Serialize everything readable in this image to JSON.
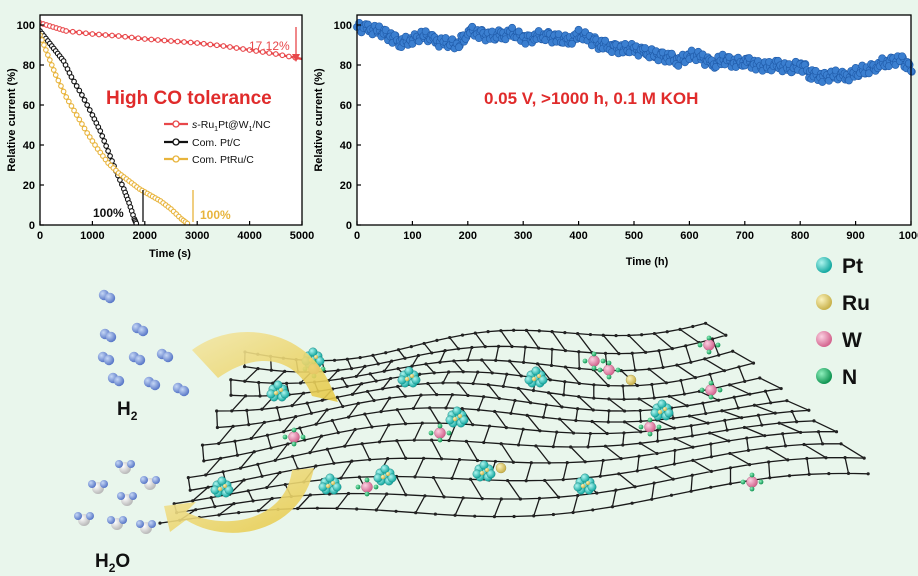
{
  "chart_data": [
    {
      "type": "line",
      "xlabel": "Time (s)",
      "ylabel": "Relative current (%)",
      "xlim": [
        0,
        5000
      ],
      "ylim": [
        0,
        105
      ],
      "xticks": [
        0,
        1000,
        2000,
        3000,
        4000,
        5000
      ],
      "yticks": [
        0,
        20,
        40,
        60,
        80,
        100
      ],
      "annotation_title": "High CO tolerance",
      "legend_position": "right",
      "series": [
        {
          "name_parts": [
            "s",
            "-Ru",
            "1",
            "Pt@W",
            "1",
            "/NC"
          ],
          "color": "#e8474a",
          "x": [
            0,
            250,
            500,
            1000,
            1500,
            2000,
            2500,
            3000,
            3500,
            4000,
            4500,
            5000
          ],
          "y": [
            101,
            99,
            97,
            95.5,
            94.5,
            93,
            92,
            91,
            89.5,
            87.5,
            85.5,
            83
          ]
        },
        {
          "name": "Com. Pt/C",
          "color": "#111111",
          "x": [
            0,
            150,
            300,
            450,
            600,
            800,
            1000,
            1150,
            1300,
            1450,
            1600,
            1700,
            1800,
            1850
          ],
          "y": [
            97,
            92,
            87,
            82,
            74,
            65,
            55,
            47,
            37,
            27,
            18,
            11,
            3,
            0
          ]
        },
        {
          "name": "Com. PtRu/C",
          "color": "#e8b43c",
          "x": [
            0,
            150,
            300,
            500,
            700,
            900,
            1100,
            1300,
            1500,
            1700,
            1900,
            2100,
            2300,
            2500,
            2700,
            2850
          ],
          "y": [
            95,
            85,
            75,
            64,
            55,
            46,
            38,
            31,
            26,
            22,
            18,
            15,
            12,
            8,
            3,
            0
          ]
        }
      ],
      "annotations": [
        {
          "text": "17.12%",
          "color": "#e8474a"
        },
        {
          "text": "100%",
          "color": "#111111"
        },
        {
          "text": "100%",
          "color": "#e8b43c"
        }
      ]
    },
    {
      "type": "scatter",
      "xlabel": "Time (h)",
      "ylabel": "Relative current (%)",
      "xlim": [
        0,
        1000
      ],
      "ylim": [
        0,
        105
      ],
      "xticks": [
        0,
        100,
        200,
        300,
        400,
        500,
        600,
        700,
        800,
        900,
        1000
      ],
      "yticks": [
        0,
        20,
        40,
        60,
        80,
        100
      ],
      "annotation_title": "0.05 V, >1000 h,  0.1 M KOH",
      "series": [
        {
          "color": "#3b7fd0",
          "x": [
            0,
            20,
            40,
            60,
            80,
            100,
            120,
            140,
            160,
            180,
            200,
            220,
            240,
            260,
            280,
            300,
            320,
            340,
            360,
            380,
            400,
            420,
            440,
            460,
            480,
            500,
            520,
            540,
            560,
            580,
            600,
            620,
            640,
            660,
            680,
            700,
            720,
            740,
            760,
            780,
            800,
            820,
            840,
            860,
            880,
            900,
            920,
            940,
            960,
            980,
            1000
          ],
          "y": [
            99,
            98,
            97,
            94,
            91,
            93,
            95,
            92,
            91,
            90,
            97,
            96,
            94,
            95,
            96,
            93,
            94,
            95,
            93,
            92,
            95,
            93,
            90,
            89,
            88,
            88,
            86,
            85,
            84,
            82,
            85,
            84,
            80,
            83,
            81,
            82,
            80,
            79,
            80,
            78,
            80,
            75,
            74,
            75,
            74,
            76,
            78,
            80,
            82,
            83,
            77
          ]
        }
      ]
    }
  ],
  "scheme": {
    "legend": [
      {
        "label": "Pt",
        "color": "#2fd6cc"
      },
      {
        "label": "Ru",
        "color": "#e6d77a"
      },
      {
        "label": "W",
        "color": "#e88db0"
      },
      {
        "label": "N",
        "color": "#1fb86a"
      }
    ],
    "h2_label": "H",
    "h2_sub": "2",
    "h2o_label": "H",
    "h2o_sub": "2",
    "h2o_suffix": "O"
  }
}
